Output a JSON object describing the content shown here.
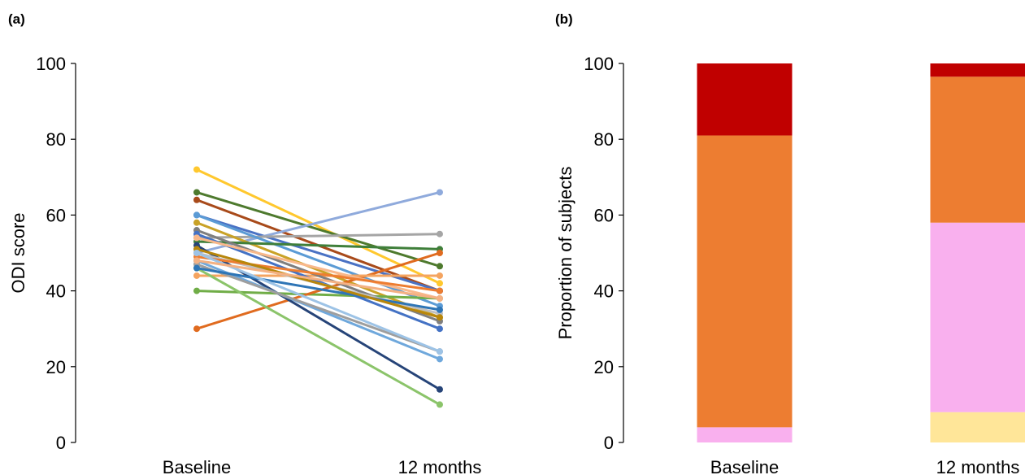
{
  "panels": {
    "a": "(a)",
    "b": "(b)"
  },
  "chart_data": [
    {
      "type": "line",
      "panel": "(a)",
      "ylabel": "ODI score",
      "xlabel": "",
      "categories": [
        "Baseline",
        "12 months"
      ],
      "ylim": [
        0,
        100
      ],
      "yticks": [
        0,
        20,
        40,
        60,
        80,
        100
      ],
      "grid": false,
      "legend": "none",
      "series": [
        {
          "color": "#FFC82E",
          "values": [
            72,
            42
          ]
        },
        {
          "color": "#4E7A2E",
          "values": [
            66,
            46.5
          ]
        },
        {
          "color": "#A84A1A",
          "values": [
            64,
            40
          ]
        },
        {
          "color": "#4A72C4",
          "values": [
            60,
            40
          ]
        },
        {
          "color": "#8FAADC",
          "values": [
            50,
            66
          ]
        },
        {
          "color": "#A5A5A5",
          "values": [
            54,
            55
          ]
        },
        {
          "color": "#5B9BD5",
          "values": [
            60,
            36
          ]
        },
        {
          "color": "#C9A227",
          "values": [
            58,
            33
          ]
        },
        {
          "color": "#3F7F3A",
          "values": [
            53,
            51
          ]
        },
        {
          "color": "#70AD47",
          "values": [
            40,
            38
          ]
        },
        {
          "color": "#E06B1F",
          "values": [
            30,
            50
          ]
        },
        {
          "color": "#F4A460",
          "values": [
            44,
            44
          ]
        },
        {
          "color": "#264478",
          "values": [
            52,
            14
          ]
        },
        {
          "color": "#8BC46A",
          "values": [
            46,
            10
          ]
        },
        {
          "color": "#7F7F7F",
          "values": [
            56,
            32
          ]
        },
        {
          "color": "#6FA8DC",
          "values": [
            48,
            22
          ]
        },
        {
          "color": "#9E9E9E",
          "values": [
            47,
            24
          ]
        },
        {
          "color": "#4472C4",
          "values": [
            55,
            30
          ]
        },
        {
          "color": "#F8B88B",
          "values": [
            54,
            38
          ]
        },
        {
          "color": "#C0C0C0",
          "values": [
            50,
            34
          ]
        },
        {
          "color": "#ED7D31",
          "values": [
            49,
            40
          ]
        },
        {
          "color": "#2E75B6",
          "values": [
            46,
            35
          ]
        },
        {
          "color": "#B8860B",
          "values": [
            51,
            33
          ]
        },
        {
          "color": "#9DC3E6",
          "values": [
            50,
            24
          ]
        },
        {
          "color": "#F4B183",
          "values": [
            48,
            38
          ]
        }
      ]
    },
    {
      "type": "bar",
      "stacked": true,
      "panel": "(b)",
      "ylabel": "Proportion of subjects",
      "xlabel": "",
      "categories": [
        "Baseline",
        "12 months"
      ],
      "ylim": [
        0,
        100
      ],
      "yticks": [
        0,
        20,
        40,
        60,
        80,
        100
      ],
      "grid": false,
      "legend": "none",
      "series": [
        {
          "color": "#FFE699",
          "values": [
            0,
            8
          ]
        },
        {
          "color": "#F9B0EE",
          "values": [
            4,
            50
          ]
        },
        {
          "color": "#ED7D31",
          "values": [
            77,
            38.5
          ]
        },
        {
          "color": "#C00000",
          "values": [
            19,
            3.5
          ]
        }
      ]
    }
  ]
}
